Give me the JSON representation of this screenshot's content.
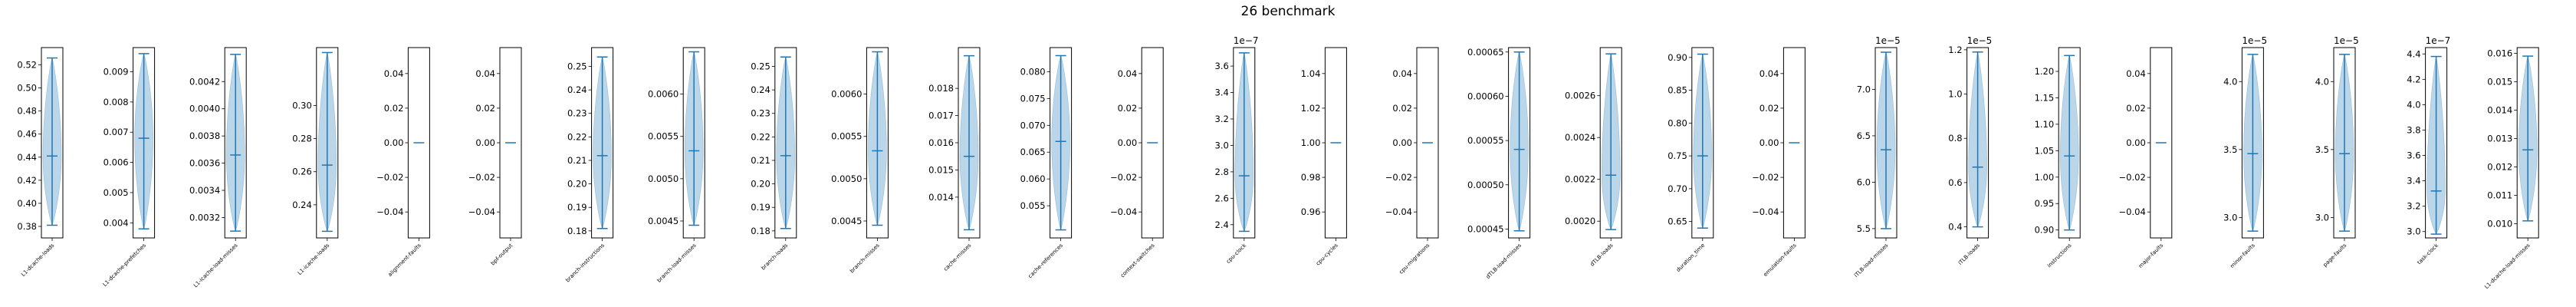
{
  "title": "26 benchmark",
  "chart_data": {
    "type": "violin",
    "colors": {
      "body": "#1f77b4",
      "lines": "#1f77b4",
      "axes": "#000000"
    },
    "panels": [
      {
        "label": "L1-dcache-loads",
        "offset": "",
        "ylim": [
          0.37,
          0.535
        ],
        "ticks": [
          "0.38",
          "0.40",
          "0.42",
          "0.44",
          "0.46",
          "0.48",
          "0.50",
          "0.52"
        ],
        "tick_values": [
          0.38,
          0.4,
          0.42,
          0.44,
          0.46,
          0.48,
          0.5,
          0.52
        ],
        "min": 0.381,
        "max": 0.526,
        "median": 0.441,
        "const": false
      },
      {
        "label": "L1-dcache-prefetches",
        "offset": "",
        "ylim": [
          0.0035,
          0.0098
        ],
        "ticks": [
          "0.004",
          "0.005",
          "0.006",
          "0.007",
          "0.008",
          "0.009"
        ],
        "tick_values": [
          0.004,
          0.005,
          0.006,
          0.007,
          0.008,
          0.009
        ],
        "min": 0.0038,
        "max": 0.0096,
        "median": 0.0068,
        "const": false
      },
      {
        "label": "L1-icache-load-misses",
        "offset": "",
        "ylim": [
          0.00305,
          0.00445
        ],
        "ticks": [
          "0.0032",
          "0.0034",
          "0.0036",
          "0.0038",
          "0.0040",
          "0.0042"
        ],
        "tick_values": [
          0.0032,
          0.0034,
          0.0036,
          0.0038,
          0.004,
          0.0042
        ],
        "min": 0.0031,
        "max": 0.0044,
        "median": 0.00366,
        "const": false
      },
      {
        "label": "L1-icache-loads",
        "offset": "",
        "ylim": [
          0.22,
          0.335
        ],
        "ticks": [
          "0.24",
          "0.26",
          "0.28",
          "0.30"
        ],
        "tick_values": [
          0.24,
          0.26,
          0.28,
          0.3
        ],
        "min": 0.224,
        "max": 0.332,
        "median": 0.264,
        "const": false
      },
      {
        "label": "alignment-faults",
        "offset": "",
        "ylim": [
          -0.055,
          0.055
        ],
        "ticks": [
          "−0.04",
          "−0.02",
          "0.00",
          "0.02",
          "0.04"
        ],
        "tick_values": [
          -0.04,
          -0.02,
          0,
          0.02,
          0.04
        ],
        "min": 0,
        "max": 0,
        "median": 0,
        "const": true
      },
      {
        "label": "bpf-output",
        "offset": "",
        "ylim": [
          -0.055,
          0.055
        ],
        "ticks": [
          "−0.04",
          "−0.02",
          "0.00",
          "0.02",
          "0.04"
        ],
        "tick_values": [
          -0.04,
          -0.02,
          0,
          0.02,
          0.04
        ],
        "min": 0,
        "max": 0,
        "median": 0,
        "const": true
      },
      {
        "label": "branch-instructions",
        "offset": "",
        "ylim": [
          0.177,
          0.258
        ],
        "ticks": [
          "0.18",
          "0.19",
          "0.20",
          "0.21",
          "0.22",
          "0.23",
          "0.24",
          "0.25"
        ],
        "tick_values": [
          0.18,
          0.19,
          0.2,
          0.21,
          0.22,
          0.23,
          0.24,
          0.25
        ],
        "min": 0.181,
        "max": 0.254,
        "median": 0.212,
        "const": false
      },
      {
        "label": "branch-load-misses",
        "offset": "",
        "ylim": [
          0.0043,
          0.00655
        ],
        "ticks": [
          "0.0045",
          "0.0050",
          "0.0055",
          "0.0060"
        ],
        "tick_values": [
          0.0045,
          0.005,
          0.0055,
          0.006
        ],
        "min": 0.00445,
        "max": 0.0065,
        "median": 0.00533,
        "const": false
      },
      {
        "label": "branch-loads",
        "offset": "",
        "ylim": [
          0.177,
          0.258
        ],
        "ticks": [
          "0.18",
          "0.19",
          "0.20",
          "0.21",
          "0.22",
          "0.23",
          "0.24",
          "0.25"
        ],
        "tick_values": [
          0.18,
          0.19,
          0.2,
          0.21,
          0.22,
          0.23,
          0.24,
          0.25
        ],
        "min": 0.181,
        "max": 0.254,
        "median": 0.212,
        "const": false
      },
      {
        "label": "branch-misses",
        "offset": "",
        "ylim": [
          0.0043,
          0.00655
        ],
        "ticks": [
          "0.0045",
          "0.0050",
          "0.0055",
          "0.0060"
        ],
        "tick_values": [
          0.0045,
          0.005,
          0.0055,
          0.006
        ],
        "min": 0.00445,
        "max": 0.0065,
        "median": 0.00533,
        "const": false
      },
      {
        "label": "cache-misses",
        "offset": "",
        "ylim": [
          0.0125,
          0.0195
        ],
        "ticks": [
          "0.014",
          "0.015",
          "0.016",
          "0.017",
          "0.018"
        ],
        "tick_values": [
          0.014,
          0.015,
          0.016,
          0.017,
          0.018
        ],
        "min": 0.0128,
        "max": 0.0192,
        "median": 0.0155,
        "const": false
      },
      {
        "label": "cache-references",
        "offset": "",
        "ylim": [
          0.049,
          0.0845
        ],
        "ticks": [
          "0.055",
          "0.060",
          "0.065",
          "0.070",
          "0.075",
          "0.080"
        ],
        "tick_values": [
          0.055,
          0.06,
          0.065,
          0.07,
          0.075,
          0.08
        ],
        "min": 0.0505,
        "max": 0.083,
        "median": 0.067,
        "const": false
      },
      {
        "label": "context-switches",
        "offset": "",
        "ylim": [
          -0.055,
          0.055
        ],
        "ticks": [
          "−0.04",
          "−0.02",
          "0.00",
          "0.02",
          "0.04"
        ],
        "tick_values": [
          -0.04,
          -0.02,
          0,
          0.02,
          0.04
        ],
        "min": 0,
        "max": 0,
        "median": 0,
        "const": true
      },
      {
        "label": "cpu-clock",
        "offset": "1e−7",
        "ylim": [
          2.3,
          3.74
        ],
        "ticks": [
          "2.4",
          "2.6",
          "2.8",
          "3.0",
          "3.2",
          "3.4",
          "3.6"
        ],
        "tick_values": [
          2.4,
          2.6,
          2.8,
          3.0,
          3.2,
          3.4,
          3.6
        ],
        "min": 2.35,
        "max": 3.7,
        "median": 2.77,
        "const": false
      },
      {
        "label": "cpu-cycles",
        "offset": "",
        "ylim": [
          0.945,
          1.055
        ],
        "ticks": [
          "0.96",
          "0.98",
          "1.00",
          "1.02",
          "1.04"
        ],
        "tick_values": [
          0.96,
          0.98,
          1.0,
          1.02,
          1.04
        ],
        "min": 1,
        "max": 1,
        "median": 1,
        "const": true
      },
      {
        "label": "cpu-migrations",
        "offset": "",
        "ylim": [
          -0.055,
          0.055
        ],
        "ticks": [
          "−0.04",
          "−0.02",
          "0.00",
          "0.02",
          "0.04"
        ],
        "tick_values": [
          -0.04,
          -0.02,
          0,
          0.02,
          0.04
        ],
        "min": 0,
        "max": 0,
        "median": 0,
        "const": true
      },
      {
        "label": "dTLB-load-misses",
        "offset": "",
        "ylim": [
          0.00044,
          0.000655
        ],
        "ticks": [
          "0.00045",
          "0.00050",
          "0.00055",
          "0.00060",
          "0.00065"
        ],
        "tick_values": [
          0.00045,
          0.0005,
          0.00055,
          0.0006,
          0.00065
        ],
        "min": 0.000448,
        "max": 0.00065,
        "median": 0.00054,
        "const": false
      },
      {
        "label": "dTLB-loads",
        "offset": "",
        "ylim": [
          0.00192,
          0.00283
        ],
        "ticks": [
          "0.0020",
          "0.0022",
          "0.0024",
          "0.0026"
        ],
        "tick_values": [
          0.002,
          0.0022,
          0.0024,
          0.0026
        ],
        "min": 0.00196,
        "max": 0.0028,
        "median": 0.00222,
        "const": false
      },
      {
        "label": "duration_time",
        "offset": "",
        "ylim": [
          0.625,
          0.915
        ],
        "ticks": [
          "0.65",
          "0.70",
          "0.75",
          "0.80",
          "0.85",
          "0.90"
        ],
        "tick_values": [
          0.65,
          0.7,
          0.75,
          0.8,
          0.85,
          0.9
        ],
        "min": 0.64,
        "max": 0.905,
        "median": 0.75,
        "const": false
      },
      {
        "label": "emulation-faults",
        "offset": "",
        "ylim": [
          -0.055,
          0.055
        ],
        "ticks": [
          "−0.04",
          "−0.02",
          "0.00",
          "0.02",
          "0.04"
        ],
        "tick_values": [
          -0.04,
          -0.02,
          0,
          0.02,
          0.04
        ],
        "min": 0,
        "max": 0,
        "median": 0,
        "const": true
      },
      {
        "label": "iTLB-load-misses",
        "offset": "1e−5",
        "ylim": [
          5.4,
          7.45
        ],
        "ticks": [
          "5.5",
          "6.0",
          "6.5",
          "7.0"
        ],
        "tick_values": [
          5.5,
          6.0,
          6.5,
          7.0
        ],
        "min": 5.5,
        "max": 7.4,
        "median": 6.35,
        "const": false
      },
      {
        "label": "iTLB-loads",
        "offset": "1e−5",
        "ylim": [
          0.35,
          1.21
        ],
        "ticks": [
          "0.4",
          "0.6",
          "0.8",
          "1.0",
          "1.2"
        ],
        "tick_values": [
          0.4,
          0.6,
          0.8,
          1.0,
          1.2
        ],
        "min": 0.4,
        "max": 1.19,
        "median": 0.67,
        "const": false
      },
      {
        "label": "instructions",
        "offset": "",
        "ylim": [
          0.885,
          1.245
        ],
        "ticks": [
          "0.90",
          "0.95",
          "1.00",
          "1.05",
          "1.10",
          "1.15",
          "1.20"
        ],
        "tick_values": [
          0.9,
          0.95,
          1.0,
          1.05,
          1.1,
          1.15,
          1.2
        ],
        "min": 0.9,
        "max": 1.23,
        "median": 1.04,
        "const": false
      },
      {
        "label": "major-faults",
        "offset": "",
        "ylim": [
          -0.055,
          0.055
        ],
        "ticks": [
          "−0.04",
          "−0.02",
          "0.00",
          "0.02",
          "0.04"
        ],
        "tick_values": [
          -0.04,
          -0.02,
          0,
          0.02,
          0.04
        ],
        "min": 0,
        "max": 0,
        "median": 0,
        "const": true
      },
      {
        "label": "minor-faults",
        "offset": "1e−5",
        "ylim": [
          2.85,
          4.25
        ],
        "ticks": [
          "3.0",
          "3.5",
          "4.0"
        ],
        "tick_values": [
          3.0,
          3.5,
          4.0
        ],
        "min": 2.9,
        "max": 4.2,
        "median": 3.47,
        "const": false
      },
      {
        "label": "page-faults",
        "offset": "1e−5",
        "ylim": [
          2.85,
          4.25
        ],
        "ticks": [
          "3.0",
          "3.5",
          "4.0"
        ],
        "tick_values": [
          3.0,
          3.5,
          4.0
        ],
        "min": 2.9,
        "max": 4.2,
        "median": 3.47,
        "const": false
      },
      {
        "label": "task-clock",
        "offset": "1e−7",
        "ylim": [
          2.95,
          4.45
        ],
        "ticks": [
          "3.0",
          "3.2",
          "3.4",
          "3.6",
          "3.8",
          "4.0",
          "4.2",
          "4.4"
        ],
        "tick_values": [
          3.0,
          3.2,
          3.4,
          3.6,
          3.8,
          4.0,
          4.2,
          4.4
        ],
        "min": 2.98,
        "max": 4.38,
        "median": 3.32,
        "const": false
      },
      {
        "label": "L1-dcache-load-misses",
        "offset": "",
        "ylim": [
          0.0095,
          0.0162
        ],
        "ticks": [
          "0.010",
          "0.011",
          "0.012",
          "0.013",
          "0.014",
          "0.015",
          "0.016"
        ],
        "tick_values": [
          0.01,
          0.011,
          0.012,
          0.013,
          0.014,
          0.015,
          0.016
        ],
        "min": 0.0101,
        "max": 0.0159,
        "median": 0.0126,
        "const": false
      }
    ]
  }
}
